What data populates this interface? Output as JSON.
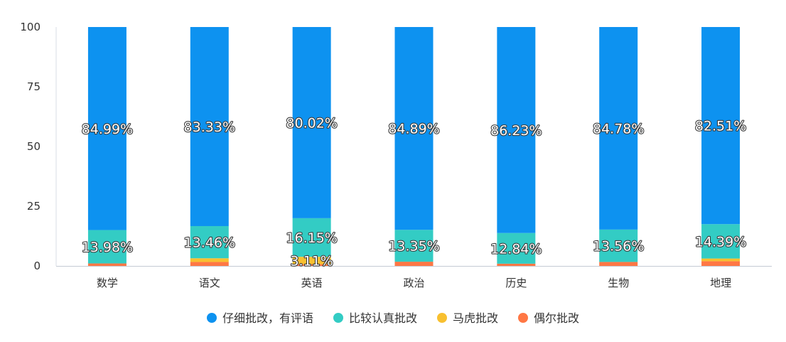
{
  "chart_data": {
    "type": "bar",
    "stacked": true,
    "categories": [
      "数学",
      "语文",
      "英语",
      "政治",
      "历史",
      "生物",
      "地理"
    ],
    "series": [
      {
        "name": "偶尔批改",
        "color": "#ff7744",
        "values": [
          1.03,
          1.65,
          0.72,
          1.76,
          0.93,
          1.66,
          1.96
        ],
        "labels": [
          "",
          "",
          "",
          "",
          "",
          "",
          ""
        ]
      },
      {
        "name": "马虎批改",
        "color": "#f8c030",
        "values": [
          0,
          1.56,
          3.11,
          0,
          0,
          0,
          1.14
        ],
        "labels": [
          "",
          "",
          "3.11%",
          "",
          "",
          "",
          ""
        ]
      },
      {
        "name": "比较认真批改",
        "color": "#33ccc4",
        "values": [
          13.98,
          13.46,
          16.15,
          13.35,
          12.84,
          13.56,
          14.39
        ],
        "labels": [
          "13.98%",
          "13.46%",
          "16.15%",
          "13.35%",
          "12.84%",
          "13.56%",
          "14.39%"
        ]
      },
      {
        "name": "仔细批改，有评语",
        "color": "#0d92f0",
        "values": [
          84.99,
          83.33,
          80.02,
          84.89,
          86.23,
          84.78,
          82.51
        ],
        "labels": [
          "84.99%",
          "83.33%",
          "80.02%",
          "84.89%",
          "86.23%",
          "84.78%",
          "82.51%"
        ]
      }
    ],
    "legend_order": [
      3,
      2,
      1,
      0
    ],
    "ylim": [
      0,
      100
    ],
    "yticks": [
      0,
      25,
      50,
      75,
      100
    ],
    "legend_position": "bottom-center",
    "grid": false
  }
}
